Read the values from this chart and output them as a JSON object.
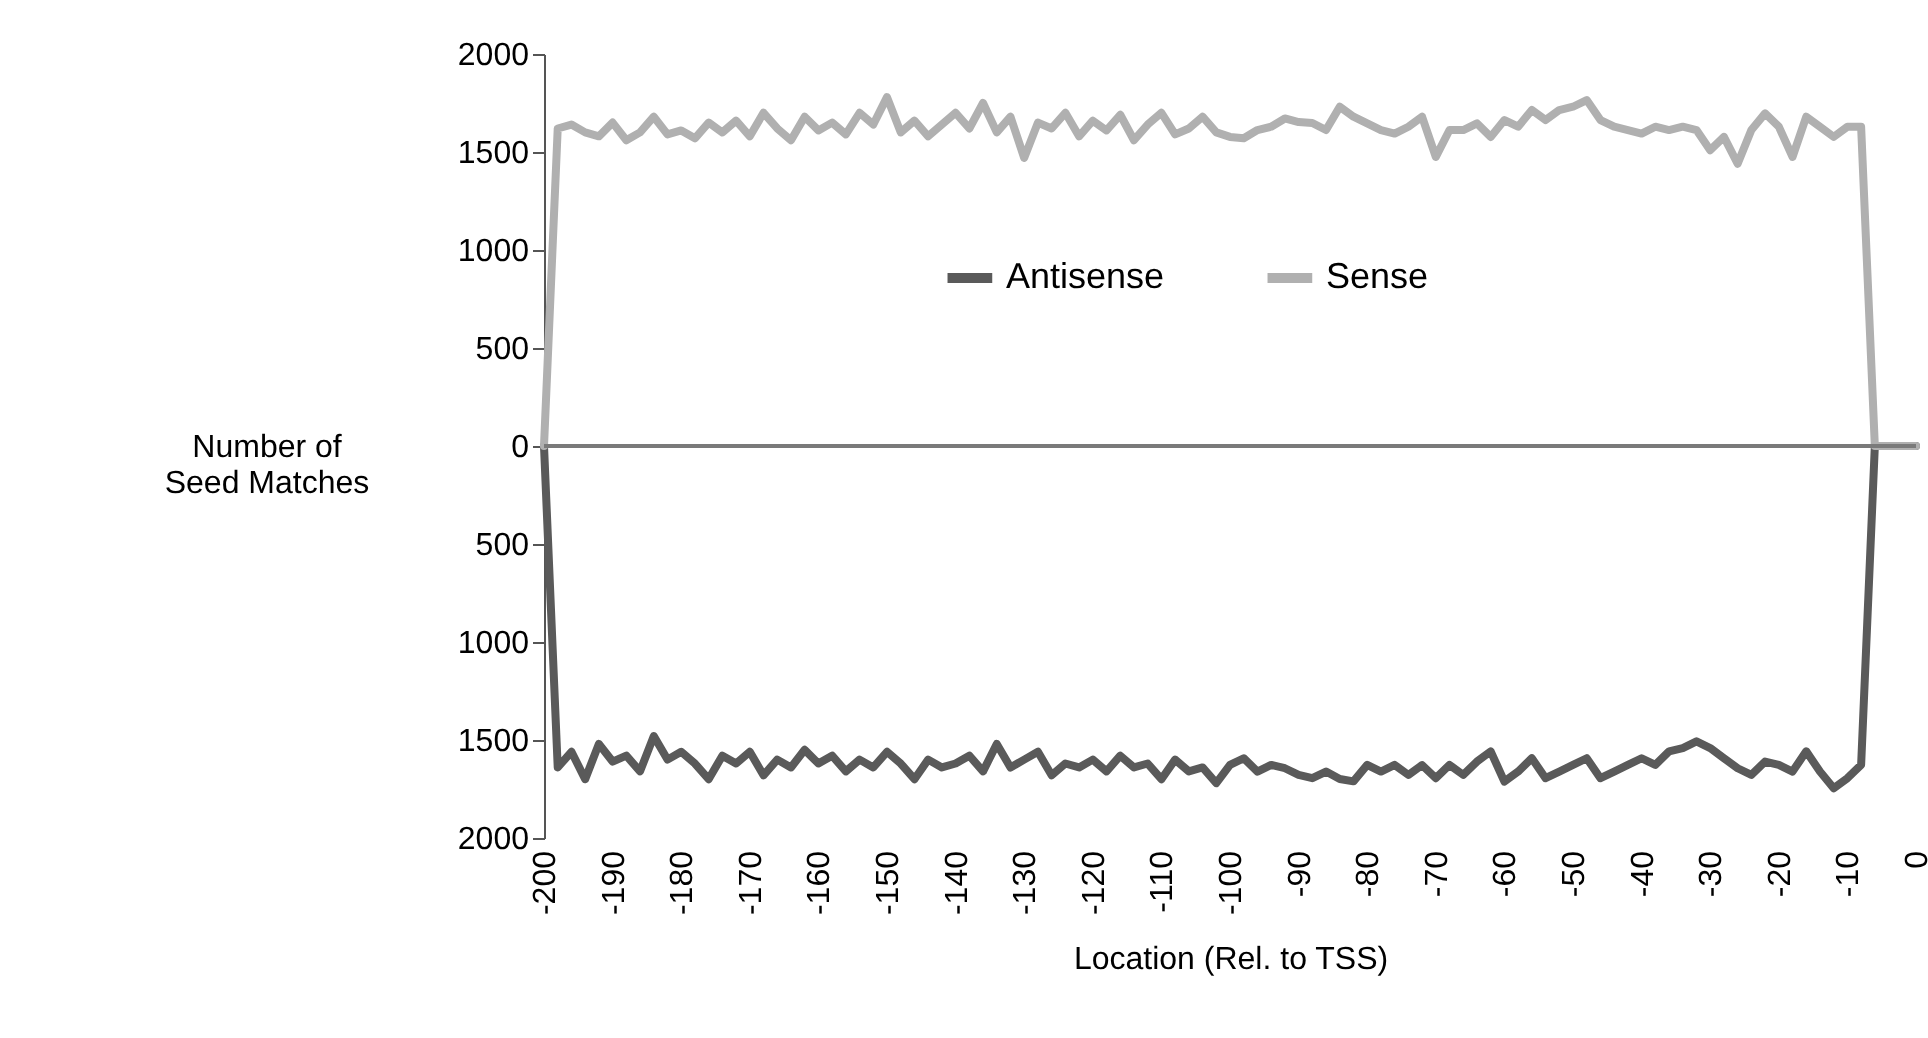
{
  "chart_data": {
    "type": "line",
    "xlabel": "Location (Rel. to TSS)",
    "ylabel": "Number of Seed Matches",
    "x": [
      -200,
      -198,
      -196,
      -194,
      -192,
      -190,
      -188,
      -186,
      -184,
      -182,
      -180,
      -178,
      -176,
      -174,
      -172,
      -170,
      -168,
      -166,
      -164,
      -162,
      -160,
      -158,
      -156,
      -154,
      -152,
      -150,
      -148,
      -146,
      -144,
      -142,
      -140,
      -138,
      -136,
      -134,
      -132,
      -130,
      -128,
      -126,
      -124,
      -122,
      -120,
      -118,
      -116,
      -114,
      -112,
      -110,
      -108,
      -106,
      -104,
      -102,
      -100,
      -98,
      -96,
      -94,
      -92,
      -90,
      -88,
      -86,
      -84,
      -82,
      -80,
      -78,
      -76,
      -74,
      -72,
      -70,
      -68,
      -66,
      -64,
      -62,
      -60,
      -58,
      -56,
      -54,
      -52,
      -50,
      -48,
      -46,
      -44,
      -42,
      -40,
      -38,
      -36,
      -34,
      -32,
      -30,
      -28,
      -26,
      -24,
      -22,
      -20,
      -18,
      -16,
      -14,
      -12,
      -10,
      -8,
      -6,
      0
    ],
    "series": [
      {
        "name": "Antisense",
        "color": "#5a5a5a",
        "values": [
          0,
          -1640,
          -1560,
          -1700,
          -1520,
          -1610,
          -1580,
          -1660,
          -1480,
          -1600,
          -1560,
          -1620,
          -1700,
          -1580,
          -1620,
          -1560,
          -1680,
          -1600,
          -1640,
          -1550,
          -1620,
          -1580,
          -1660,
          -1600,
          -1640,
          -1560,
          -1620,
          -1700,
          -1600,
          -1640,
          -1620,
          -1580,
          -1660,
          -1520,
          -1640,
          -1600,
          -1560,
          -1680,
          -1620,
          -1640,
          -1600,
          -1660,
          -1580,
          -1640,
          -1620,
          -1700,
          -1600,
          -1660,
          -1640,
          -1720,
          -1627,
          -1593,
          -1661,
          -1627,
          -1644,
          -1678,
          -1695,
          -1661,
          -1699,
          -1711,
          -1627,
          -1661,
          -1627,
          -1678,
          -1628,
          -1695,
          -1627,
          -1678,
          -1610,
          -1558,
          -1712,
          -1661,
          -1593,
          -1695,
          -1661,
          -1627,
          -1593,
          -1695,
          -1661,
          -1627,
          -1593,
          -1627,
          -1558,
          -1541,
          -1507,
          -1541,
          -1593,
          -1644,
          -1678,
          -1610,
          -1627,
          -1661,
          -1558,
          -1661,
          -1746,
          -1695,
          -1627,
          0,
          0
        ]
      },
      {
        "name": "Sense",
        "color": "#b0b0b0",
        "values": [
          0,
          1620,
          1640,
          1600,
          1580,
          1650,
          1560,
          1600,
          1680,
          1590,
          1610,
          1570,
          1650,
          1600,
          1660,
          1580,
          1700,
          1620,
          1560,
          1680,
          1610,
          1650,
          1590,
          1700,
          1640,
          1780,
          1600,
          1660,
          1580,
          1640,
          1700,
          1620,
          1750,
          1600,
          1680,
          1470,
          1650,
          1620,
          1700,
          1580,
          1660,
          1610,
          1690,
          1560,
          1640,
          1700,
          1590,
          1620,
          1680,
          1600,
          1577,
          1570,
          1612,
          1629,
          1671,
          1653,
          1648,
          1612,
          1731,
          1680,
          1646,
          1612,
          1594,
          1629,
          1680,
          1475,
          1612,
          1612,
          1646,
          1577,
          1663,
          1629,
          1714,
          1663,
          1714,
          1731,
          1765,
          1663,
          1629,
          1612,
          1594,
          1629,
          1612,
          1629,
          1612,
          1509,
          1577,
          1440,
          1612,
          1697,
          1629,
          1475,
          1680,
          1629,
          1577,
          1629,
          1629,
          0,
          0
        ]
      }
    ],
    "xlim": [
      -200,
      0
    ],
    "xticks": [
      -200,
      -190,
      -180,
      -170,
      -160,
      -150,
      -140,
      -130,
      -120,
      -110,
      -100,
      -90,
      -80,
      -70,
      -60,
      -50,
      -40,
      -30,
      -20,
      -10,
      0
    ],
    "ylim": [
      -2000,
      2000
    ],
    "yticks": [
      {
        "value": -2000,
        "label": "2000"
      },
      {
        "value": -1500,
        "label": "1500"
      },
      {
        "value": -1000,
        "label": "1000"
      },
      {
        "value": -500,
        "label": "500"
      },
      0,
      500,
      1000,
      1500,
      2000
    ],
    "ref_lines": [
      {
        "axis": "y",
        "value": 0,
        "color": "#7a7a7a"
      }
    ],
    "legend": "top",
    "grid": false,
    "line_style": "solid",
    "marker": "none"
  }
}
